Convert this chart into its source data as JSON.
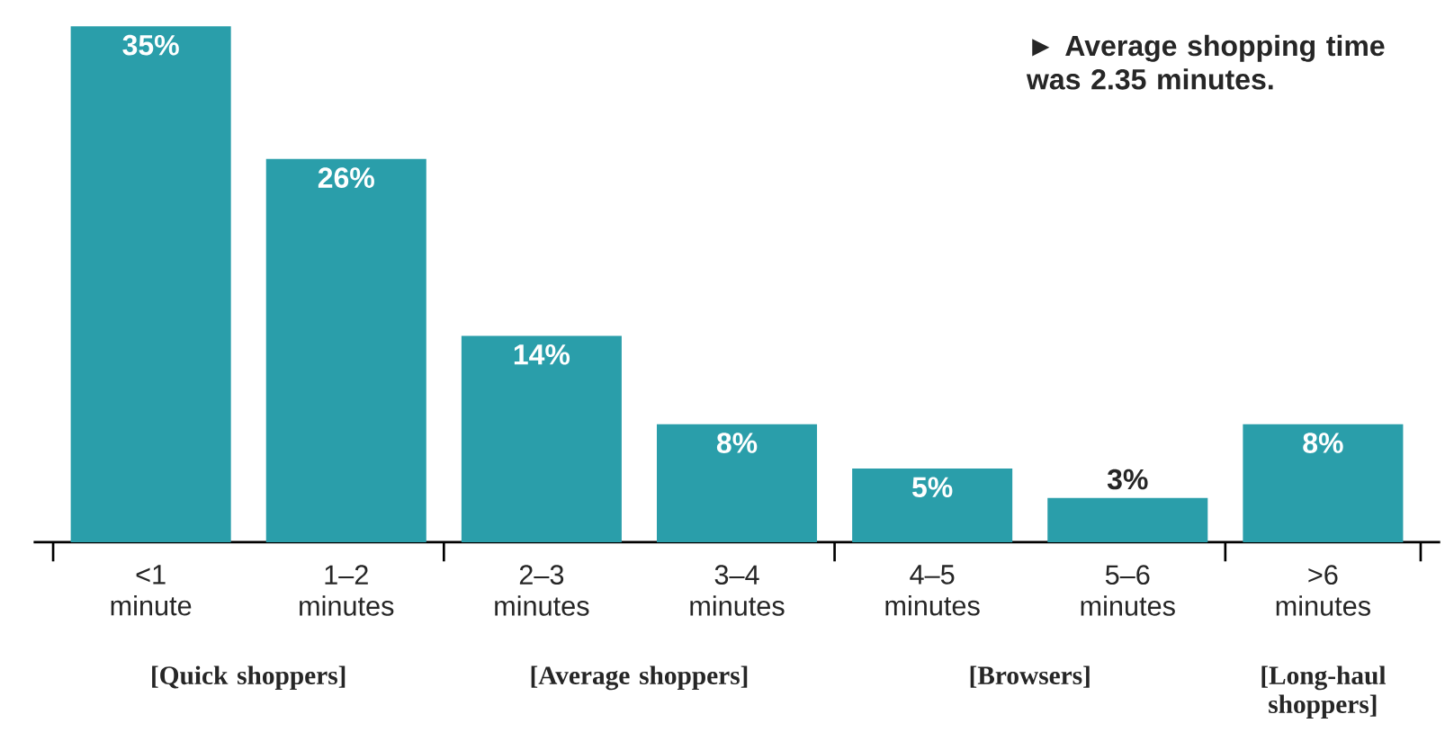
{
  "chart_data": {
    "type": "bar",
    "categories": [
      "<1 minute",
      "1–2 minutes",
      "2–3 minutes",
      "3–4 minutes",
      "4–5 minutes",
      "5–6 minutes",
      ">6 minutes"
    ],
    "values": [
      35,
      26,
      14,
      8,
      5,
      3,
      8
    ],
    "value_labels": [
      "35%",
      "26%",
      "14%",
      "8%",
      "5%",
      "3%",
      "8%"
    ],
    "color": "#2a9eaa",
    "annotations": [
      "► Average shopping time was 2.35 minutes.",
      "[Quick shoppers]",
      "[Average shoppers]",
      "[Browsers]",
      "[Long-haul shoppers]"
    ]
  }
}
